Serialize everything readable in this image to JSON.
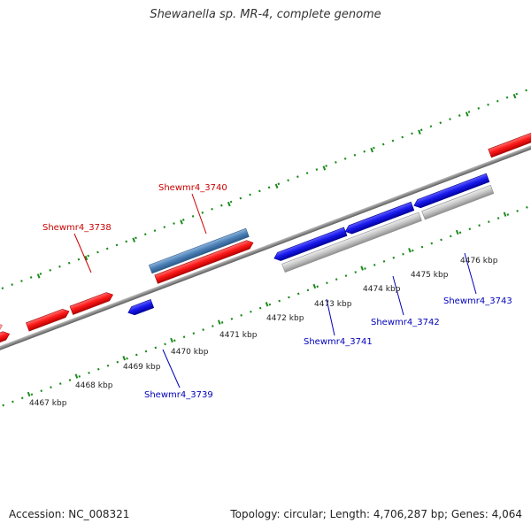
{
  "title": "Shewanella sp. MR-4, complete genome",
  "footer": {
    "accession": "Accession: NC_008321",
    "summary": "Topology: circular; Length: 4,706,287 bp; Genes: 4,064"
  },
  "colors": {
    "backbone": "#7a7a7a",
    "tick": "#1a8a1a",
    "forward_gene": "#ff1a1a",
    "reverse_gene": "#1a1aee",
    "selected_gene": "#4a7fb5",
    "hit": "#c0c0c0",
    "forward_label": "#cc0000",
    "reverse_label": "#0000bb"
  },
  "kbp_labels": [
    {
      "text": "4467 kbp",
      "kbp": 4467
    },
    {
      "text": "4468 kbp",
      "kbp": 4468
    },
    {
      "text": "4469 kbp",
      "kbp": 4469
    },
    {
      "text": "4470 kbp",
      "kbp": 4470
    },
    {
      "text": "4471 kbp",
      "kbp": 4471
    },
    {
      "text": "4472 kbp",
      "kbp": 4472
    },
    {
      "text": "4473 kbp",
      "kbp": 4473
    },
    {
      "text": "4474 kbp",
      "kbp": 4474
    },
    {
      "text": "4475 kbp",
      "kbp": 4475
    },
    {
      "text": "4476 kbp",
      "kbp": 4476
    }
  ],
  "gene_labels": [
    {
      "name": "Shewmr4_3738",
      "strand": "forward"
    },
    {
      "name": "Shewmr4_3740",
      "strand": "forward"
    },
    {
      "name": "Shewmr4_3739",
      "strand": "reverse"
    },
    {
      "name": "Shewmr4_3741",
      "strand": "reverse"
    },
    {
      "name": "Shewmr4_3742",
      "strand": "reverse"
    },
    {
      "name": "Shewmr4_3743",
      "strand": "reverse"
    }
  ]
}
